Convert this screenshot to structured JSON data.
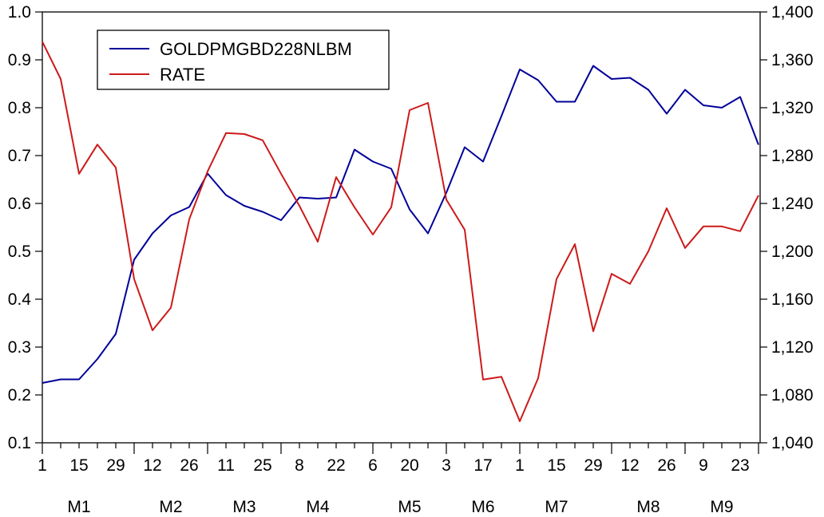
{
  "chart_data": {
    "type": "line",
    "title": "",
    "xlabel": "",
    "ylabel_left": "",
    "ylabel_right": "",
    "x_tick_labels": [
      "1",
      "15",
      "29",
      "12",
      "26",
      "11",
      "25",
      "8",
      "22",
      "6",
      "20",
      "3",
      "17",
      "1",
      "15",
      "29",
      "12",
      "26",
      "9",
      "23"
    ],
    "x_group_labels": [
      {
        "label": "M1",
        "after_tick_index": 1
      },
      {
        "label": "M2",
        "after_tick_index": 3.5
      },
      {
        "label": "M3",
        "after_tick_index": 5.5
      },
      {
        "label": "M4",
        "after_tick_index": 7.5
      },
      {
        "label": "M5",
        "after_tick_index": 10
      },
      {
        "label": "M6",
        "after_tick_index": 12
      },
      {
        "label": "M7",
        "after_tick_index": 14
      },
      {
        "label": "M8",
        "after_tick_index": 16.5
      },
      {
        "label": "M9",
        "after_tick_index": 18.5
      }
    ],
    "n_points": 40,
    "y_left": {
      "min": 0.1,
      "max": 1.0,
      "ticks": [
        "0.1",
        "0.2",
        "0.3",
        "0.4",
        "0.5",
        "0.6",
        "0.7",
        "0.8",
        "0.9",
        "1.0"
      ]
    },
    "y_right": {
      "min": 1040,
      "max": 1400,
      "ticks": [
        "1,040",
        "1,080",
        "1,120",
        "1,160",
        "1,200",
        "1,240",
        "1,280",
        "1,320",
        "1,360",
        "1,400"
      ]
    },
    "grid": false,
    "legend": {
      "placement": "top-left"
    },
    "series": [
      {
        "name": "GOLDPMGBD228NLBM",
        "axis": "right",
        "color": "#000099",
        "values": [
          1090,
          1093,
          1093,
          1110,
          1131,
          1193,
          1215,
          1230,
          1237,
          1265,
          1247,
          1238,
          1233,
          1226,
          1245,
          1244,
          1245,
          1285,
          1275,
          1269,
          1235,
          1215,
          1249,
          1287,
          1275,
          1313,
          1352,
          1343,
          1325,
          1325,
          1355,
          1344,
          1345,
          1335,
          1315,
          1335,
          1322,
          1320,
          1329,
          1289
        ]
      },
      {
        "name": "RATE",
        "axis": "left",
        "color": "#cc1a1a",
        "values": [
          0.938,
          0.86,
          0.662,
          0.723,
          0.675,
          0.442,
          0.335,
          0.382,
          0.567,
          0.667,
          0.747,
          0.745,
          0.732,
          0.662,
          0.595,
          0.52,
          0.655,
          0.592,
          0.535,
          0.592,
          0.795,
          0.81,
          0.608,
          0.545,
          0.232,
          0.238,
          0.145,
          0.235,
          0.442,
          0.515,
          0.333,
          0.453,
          0.432,
          0.5,
          0.59,
          0.507,
          0.552,
          0.552,
          0.542,
          0.617
        ]
      }
    ]
  }
}
